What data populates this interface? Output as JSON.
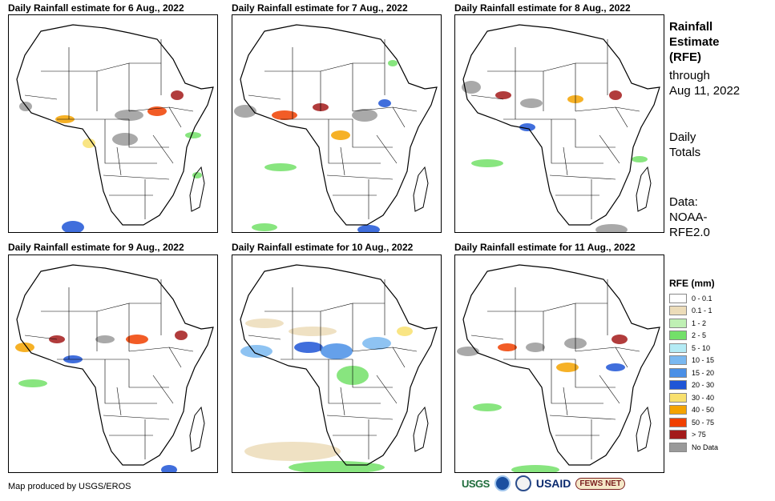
{
  "panels": [
    {
      "title": "Daily Rainfall estimate for 6 Aug., 2022",
      "rain": [
        {
          "cx": 21,
          "cy": 114,
          "rx": 8,
          "ry": 6,
          "level": 12
        },
        {
          "cx": 70,
          "cy": 130,
          "rx": 12,
          "ry": 5,
          "level": 9
        },
        {
          "cx": 150,
          "cy": 125,
          "rx": 18,
          "ry": 7,
          "level": 12
        },
        {
          "cx": 185,
          "cy": 120,
          "rx": 12,
          "ry": 6,
          "level": 10
        },
        {
          "cx": 145,
          "cy": 155,
          "rx": 16,
          "ry": 8,
          "level": 12
        },
        {
          "cx": 100,
          "cy": 160,
          "rx": 8,
          "ry": 6,
          "level": 8
        },
        {
          "cx": 210,
          "cy": 100,
          "rx": 8,
          "ry": 6,
          "level": 11
        },
        {
          "cx": 230,
          "cy": 150,
          "rx": 10,
          "ry": 4,
          "level": 3
        },
        {
          "cx": 80,
          "cy": 265,
          "rx": 14,
          "ry": 8,
          "level": 7
        },
        {
          "cx": 235,
          "cy": 200,
          "rx": 6,
          "ry": 4,
          "level": 3
        }
      ]
    },
    {
      "title": "Daily Rainfall estimate for 7 Aug., 2022",
      "rain": [
        {
          "cx": 16,
          "cy": 120,
          "rx": 14,
          "ry": 8,
          "level": 12
        },
        {
          "cx": 65,
          "cy": 125,
          "rx": 16,
          "ry": 6,
          "level": 10
        },
        {
          "cx": 110,
          "cy": 115,
          "rx": 10,
          "ry": 5,
          "level": 11
        },
        {
          "cx": 165,
          "cy": 125,
          "rx": 16,
          "ry": 8,
          "level": 12
        },
        {
          "cx": 190,
          "cy": 110,
          "rx": 8,
          "ry": 5,
          "level": 7
        },
        {
          "cx": 135,
          "cy": 150,
          "rx": 12,
          "ry": 6,
          "level": 9
        },
        {
          "cx": 200,
          "cy": 60,
          "rx": 6,
          "ry": 4,
          "level": 3
        },
        {
          "cx": 60,
          "cy": 190,
          "rx": 20,
          "ry": 5,
          "level": 3
        },
        {
          "cx": 170,
          "cy": 268,
          "rx": 14,
          "ry": 6,
          "level": 7
        },
        {
          "cx": 40,
          "cy": 265,
          "rx": 16,
          "ry": 5,
          "level": 3
        }
      ]
    },
    {
      "title": "Daily Rainfall estimate for 8 Aug., 2022",
      "rain": [
        {
          "cx": 20,
          "cy": 90,
          "rx": 12,
          "ry": 8,
          "level": 12
        },
        {
          "cx": 60,
          "cy": 100,
          "rx": 10,
          "ry": 5,
          "level": 11
        },
        {
          "cx": 95,
          "cy": 110,
          "rx": 14,
          "ry": 6,
          "level": 12
        },
        {
          "cx": 150,
          "cy": 105,
          "rx": 10,
          "ry": 5,
          "level": 9
        },
        {
          "cx": 200,
          "cy": 100,
          "rx": 8,
          "ry": 6,
          "level": 11
        },
        {
          "cx": 90,
          "cy": 140,
          "rx": 10,
          "ry": 5,
          "level": 7
        },
        {
          "cx": 40,
          "cy": 185,
          "rx": 20,
          "ry": 5,
          "level": 3
        },
        {
          "cx": 195,
          "cy": 268,
          "rx": 20,
          "ry": 7,
          "level": 12
        },
        {
          "cx": 230,
          "cy": 180,
          "rx": 10,
          "ry": 4,
          "level": 3
        }
      ]
    },
    {
      "title": "Daily Rainfall estimate for 9 Aug., 2022",
      "rain": [
        {
          "cx": 20,
          "cy": 115,
          "rx": 12,
          "ry": 6,
          "level": 9
        },
        {
          "cx": 60,
          "cy": 105,
          "rx": 10,
          "ry": 5,
          "level": 11
        },
        {
          "cx": 120,
          "cy": 105,
          "rx": 12,
          "ry": 5,
          "level": 12
        },
        {
          "cx": 160,
          "cy": 105,
          "rx": 14,
          "ry": 6,
          "level": 10
        },
        {
          "cx": 215,
          "cy": 100,
          "rx": 8,
          "ry": 6,
          "level": 11
        },
        {
          "cx": 80,
          "cy": 130,
          "rx": 12,
          "ry": 5,
          "level": 7
        },
        {
          "cx": 30,
          "cy": 160,
          "rx": 18,
          "ry": 5,
          "level": 3
        },
        {
          "cx": 200,
          "cy": 268,
          "rx": 10,
          "ry": 6,
          "level": 7
        }
      ]
    },
    {
      "title": "Daily Rainfall estimate for 10 Aug., 2022",
      "rain": [
        {
          "cx": 30,
          "cy": 120,
          "rx": 20,
          "ry": 8,
          "level": 5
        },
        {
          "cx": 95,
          "cy": 115,
          "rx": 18,
          "ry": 7,
          "level": 7
        },
        {
          "cx": 130,
          "cy": 120,
          "rx": 20,
          "ry": 10,
          "level": 6
        },
        {
          "cx": 180,
          "cy": 110,
          "rx": 18,
          "ry": 8,
          "level": 5
        },
        {
          "cx": 215,
          "cy": 95,
          "rx": 10,
          "ry": 6,
          "level": 8
        },
        {
          "cx": 150,
          "cy": 150,
          "rx": 20,
          "ry": 12,
          "level": 3
        },
        {
          "cx": 75,
          "cy": 245,
          "rx": 60,
          "ry": 12,
          "level": 1
        },
        {
          "cx": 130,
          "cy": 265,
          "rx": 60,
          "ry": 8,
          "level": 3
        },
        {
          "cx": 40,
          "cy": 85,
          "rx": 24,
          "ry": 6,
          "level": 1
        },
        {
          "cx": 100,
          "cy": 95,
          "rx": 30,
          "ry": 6,
          "level": 1
        }
      ]
    },
    {
      "title": "Daily Rainfall estimate for 11 Aug., 2022",
      "rain": [
        {
          "cx": 16,
          "cy": 120,
          "rx": 14,
          "ry": 6,
          "level": 12
        },
        {
          "cx": 65,
          "cy": 115,
          "rx": 12,
          "ry": 5,
          "level": 10
        },
        {
          "cx": 100,
          "cy": 115,
          "rx": 12,
          "ry": 6,
          "level": 12
        },
        {
          "cx": 150,
          "cy": 110,
          "rx": 14,
          "ry": 7,
          "level": 12
        },
        {
          "cx": 205,
          "cy": 105,
          "rx": 10,
          "ry": 6,
          "level": 11
        },
        {
          "cx": 140,
          "cy": 140,
          "rx": 14,
          "ry": 6,
          "level": 9
        },
        {
          "cx": 200,
          "cy": 140,
          "rx": 12,
          "ry": 5,
          "level": 7
        },
        {
          "cx": 40,
          "cy": 190,
          "rx": 18,
          "ry": 5,
          "level": 3
        },
        {
          "cx": 100,
          "cy": 268,
          "rx": 30,
          "ry": 6,
          "level": 3
        }
      ]
    }
  ],
  "side": {
    "title_line1": "Rainfall",
    "title_line2": "Estimate",
    "title_line3": "(RFE)",
    "through_line1": "through",
    "through_line2": "Aug 11, 2022",
    "daily_line1": "Daily",
    "daily_line2": "Totals",
    "data_line1": "Data:",
    "data_line2": "NOAA-",
    "data_line3": "RFE2.0"
  },
  "legend": {
    "title": "RFE (mm)",
    "items": [
      {
        "label": "0 - 0.1",
        "color": "#ffffff"
      },
      {
        "label": "0.1 - 1",
        "color": "#ecdcb9"
      },
      {
        "label": "1 - 2",
        "color": "#bff0b4"
      },
      {
        "label": "2 - 5",
        "color": "#73e069"
      },
      {
        "label": "5 - 10",
        "color": "#b4ebf5"
      },
      {
        "label": "10 - 15",
        "color": "#7ab8f0"
      },
      {
        "label": "15 - 20",
        "color": "#4a8fe6"
      },
      {
        "label": "20 - 30",
        "color": "#1f55d6"
      },
      {
        "label": "30 - 40",
        "color": "#f8e06e"
      },
      {
        "label": "40 - 50",
        "color": "#f4a300"
      },
      {
        "label": "50 - 75",
        "color": "#f04000"
      },
      {
        "label": "> 75",
        "color": "#a31a1a"
      },
      {
        "label": "No Data",
        "color": "#9a9a9a"
      }
    ]
  },
  "credit": "Map produced by USGS/EROS",
  "logos": {
    "usgs": "USGS",
    "usaid": "USAID",
    "fews": "FEWS NET"
  }
}
